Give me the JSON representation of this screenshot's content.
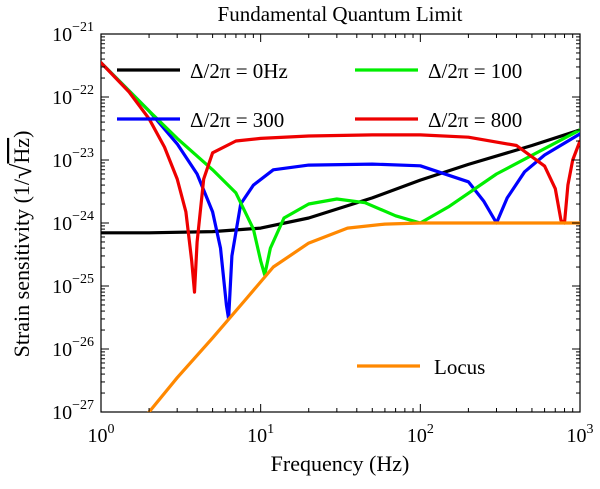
{
  "chart_data": {
    "type": "line",
    "title": "Fundamental Quantum Limit",
    "xlabel": "Frequency (Hz)",
    "ylabel_prefix": "Strain sensitivity (1/",
    "ylabel_radicand": "Hz",
    "ylabel_suffix": ")",
    "x_scale": "log",
    "y_scale": "log",
    "xlim": [
      1,
      1000
    ],
    "ylim": [
      1e-27,
      1e-21
    ],
    "x_ticks": [
      {
        "value": 1,
        "base": "10",
        "exp": "0"
      },
      {
        "value": 10,
        "base": "10",
        "exp": "1"
      },
      {
        "value": 100,
        "base": "10",
        "exp": "2"
      },
      {
        "value": 1000,
        "base": "10",
        "exp": "3"
      }
    ],
    "y_ticks": [
      {
        "value": 1e-27,
        "base": "10",
        "exp": "−27"
      },
      {
        "value": 1e-26,
        "base": "10",
        "exp": "−26"
      },
      {
        "value": 1e-25,
        "base": "10",
        "exp": "−25"
      },
      {
        "value": 1e-24,
        "base": "10",
        "exp": "−24"
      },
      {
        "value": 1e-23,
        "base": "10",
        "exp": "−23"
      },
      {
        "value": 1e-22,
        "base": "10",
        "exp": "−22"
      },
      {
        "value": 1e-21,
        "base": "10",
        "exp": "−21"
      }
    ],
    "series": [
      {
        "name": "Δ/2π = 0Hz",
        "color": "#000000",
        "x": [
          1,
          2,
          5,
          10,
          20,
          50,
          100,
          200,
          500,
          1000
        ],
        "y": [
          7e-25,
          7e-25,
          7.3e-25,
          8.3e-25,
          1.2e-24,
          2.5e-24,
          4.8e-24,
          8.5e-24,
          1.7e-23,
          3e-23
        ]
      },
      {
        "name": "Δ/2π = 300",
        "color": "#0000ff",
        "x": [
          1,
          2,
          3,
          4,
          5,
          5.6,
          6.1,
          6.3,
          6.6,
          7.5,
          9,
          12,
          20,
          50,
          100,
          200,
          250,
          300,
          350,
          450,
          600,
          1000
        ],
        "y": [
          3.5e-22,
          6e-23,
          1.8e-23,
          6e-24,
          1.5e-24,
          4e-25,
          5e-26,
          3e-26,
          3e-25,
          2e-24,
          4e-24,
          7e-24,
          8.3e-24,
          8.6e-24,
          8.1e-24,
          4.5e-24,
          2.2e-24,
          1e-24,
          2.5e-24,
          6.5e-24,
          1.2e-23,
          2.6e-23
        ]
      },
      {
        "name": "Δ/2π = 100",
        "color": "#00ee00",
        "x": [
          1,
          2,
          3,
          5,
          7,
          9,
          10,
          10.6,
          11.5,
          14,
          20,
          30,
          45,
          70,
          100,
          150,
          300,
          1000
        ],
        "y": [
          3.5e-22,
          6e-23,
          2.2e-23,
          7e-24,
          3e-24,
          8e-25,
          2.5e-25,
          1.5e-25,
          4e-25,
          1.2e-24,
          2e-24,
          2.4e-24,
          2.1e-24,
          1.3e-24,
          1e-24,
          1.8e-24,
          6e-24,
          3e-23
        ]
      },
      {
        "name": "Δ/2π = 800",
        "color": "#ee0000",
        "x": [
          1,
          1.5,
          2,
          2.5,
          3,
          3.4,
          3.7,
          3.85,
          4.0,
          4.4,
          5,
          7,
          10,
          20,
          50,
          100,
          200,
          400,
          600,
          700,
          760,
          800,
          840,
          900,
          1000
        ],
        "y": [
          3.5e-22,
          1.2e-22,
          4.5e-23,
          1.6e-23,
          5e-24,
          1.5e-24,
          2.5e-25,
          8e-26,
          5e-25,
          5e-24,
          1.3e-23,
          2e-23,
          2.2e-23,
          2.4e-23,
          2.5e-23,
          2.5e-23,
          2.3e-23,
          1.7e-23,
          8e-24,
          3.5e-24,
          1.1e-24,
          1e-24,
          4e-24,
          1e-23,
          2e-23
        ]
      },
      {
        "name": "Locus",
        "color": "#ff8800",
        "x": [
          2,
          3,
          5,
          8,
          12,
          20,
          35,
          60,
          100,
          200,
          1000
        ],
        "y": [
          1e-27,
          3.5e-27,
          1.5e-26,
          6e-26,
          2e-25,
          4.8e-25,
          8.3e-25,
          9.6e-25,
          1e-24,
          1e-24,
          1e-24
        ]
      }
    ],
    "legend": {
      "placement": "upper",
      "locus_placement": "lower-right"
    }
  }
}
